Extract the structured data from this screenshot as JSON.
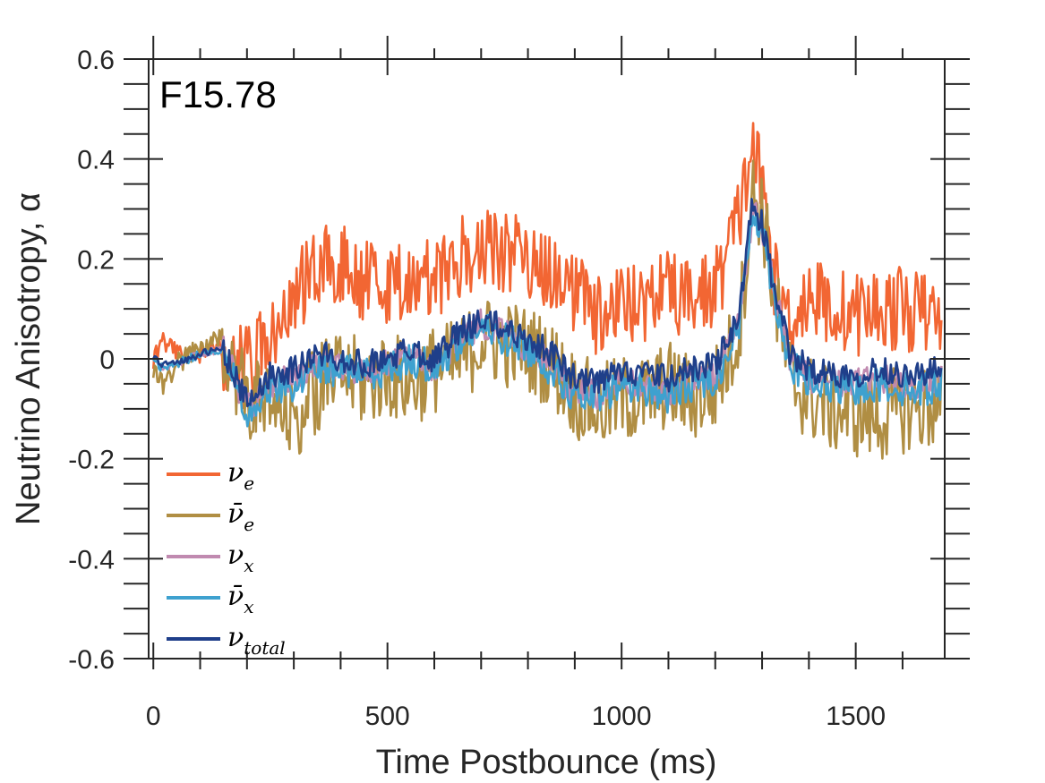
{
  "chart_data": {
    "type": "line",
    "title": "F15.78",
    "xlabel": "Time Postbounce (ms)",
    "ylabel": "Neutrino Anisotropy, α",
    "xlim": [
      -10,
      1690
    ],
    "ylim": [
      -0.6,
      0.6
    ],
    "xticks": [
      0,
      500,
      1000,
      1500
    ],
    "xtick_labels": [
      "0",
      "500",
      "1000",
      "1500"
    ],
    "yticks": [
      -0.6,
      -0.4,
      -0.2,
      0,
      0.2,
      0.4,
      0.6
    ],
    "ytick_labels": [
      "-0.6",
      "-0.4",
      "-0.2",
      "0",
      "0.2",
      "0.4",
      "0.6"
    ],
    "grid": false,
    "legend_position": "bottom-left",
    "series": [
      {
        "name": "nu_e",
        "label_base": "ν",
        "label_sub": "e",
        "color": "#f26633",
        "noise": 0.085,
        "points": [
          [
            0,
            0
          ],
          [
            20,
            0.04
          ],
          [
            50,
            0.01
          ],
          [
            100,
            0.01
          ],
          [
            150,
            0.02
          ],
          [
            200,
            -0.02
          ],
          [
            250,
            0.06
          ],
          [
            300,
            0.13
          ],
          [
            350,
            0.18
          ],
          [
            400,
            0.2
          ],
          [
            450,
            0.16
          ],
          [
            500,
            0.14
          ],
          [
            550,
            0.17
          ],
          [
            600,
            0.16
          ],
          [
            650,
            0.2
          ],
          [
            700,
            0.22
          ],
          [
            750,
            0.21
          ],
          [
            800,
            0.2
          ],
          [
            850,
            0.18
          ],
          [
            900,
            0.13
          ],
          [
            950,
            0.08
          ],
          [
            1000,
            0.1
          ],
          [
            1050,
            0.12
          ],
          [
            1100,
            0.13
          ],
          [
            1150,
            0.12
          ],
          [
            1200,
            0.14
          ],
          [
            1250,
            0.28
          ],
          [
            1280,
            0.43
          ],
          [
            1300,
            0.34
          ],
          [
            1330,
            0.14
          ],
          [
            1360,
            0.08
          ],
          [
            1400,
            0.13
          ],
          [
            1450,
            0.1
          ],
          [
            1500,
            0.09
          ],
          [
            1550,
            0.1
          ],
          [
            1600,
            0.1
          ],
          [
            1650,
            0.09
          ],
          [
            1685,
            0.08
          ]
        ]
      },
      {
        "name": "nu_e_bar",
        "label_base": "ν̄",
        "label_sub": "e",
        "color": "#b08e43",
        "noise": 0.09,
        "points": [
          [
            0,
            -0.02
          ],
          [
            20,
            -0.05
          ],
          [
            50,
            -0.01
          ],
          [
            100,
            0.02
          ],
          [
            150,
            0.04
          ],
          [
            200,
            -0.08
          ],
          [
            250,
            -0.1
          ],
          [
            300,
            -0.12
          ],
          [
            350,
            -0.06
          ],
          [
            400,
            -0.03
          ],
          [
            450,
            -0.05
          ],
          [
            500,
            -0.03
          ],
          [
            550,
            -0.05
          ],
          [
            600,
            -0.02
          ],
          [
            650,
            -0.01
          ],
          [
            700,
            0.04
          ],
          [
            750,
            0.03
          ],
          [
            800,
            0.02
          ],
          [
            850,
            -0.01
          ],
          [
            900,
            -0.07
          ],
          [
            950,
            -0.1
          ],
          [
            1000,
            -0.08
          ],
          [
            1050,
            -0.08
          ],
          [
            1100,
            -0.05
          ],
          [
            1150,
            -0.08
          ],
          [
            1200,
            -0.06
          ],
          [
            1250,
            0.05
          ],
          [
            1280,
            0.33
          ],
          [
            1300,
            0.3
          ],
          [
            1330,
            0.1
          ],
          [
            1360,
            -0.04
          ],
          [
            1400,
            -0.08
          ],
          [
            1450,
            -0.1
          ],
          [
            1500,
            -0.11
          ],
          [
            1550,
            -0.12
          ],
          [
            1600,
            -0.1
          ],
          [
            1650,
            -0.1
          ],
          [
            1685,
            -0.08
          ]
        ]
      },
      {
        "name": "nu_x",
        "label_base": "ν",
        "label_sub": "x",
        "color": "#c08ab0",
        "noise": 0.03,
        "points": [
          [
            0,
            0
          ],
          [
            20,
            -0.02
          ],
          [
            50,
            -0.01
          ],
          [
            100,
            0.01
          ],
          [
            150,
            0.02
          ],
          [
            200,
            -0.1
          ],
          [
            250,
            -0.05
          ],
          [
            300,
            -0.04
          ],
          [
            350,
            -0.01
          ],
          [
            400,
            -0.02
          ],
          [
            450,
            -0.03
          ],
          [
            500,
            -0.01
          ],
          [
            550,
            0.01
          ],
          [
            600,
            -0.02
          ],
          [
            650,
            0.04
          ],
          [
            700,
            0.07
          ],
          [
            750,
            0.05
          ],
          [
            800,
            0.02
          ],
          [
            850,
            -0.01
          ],
          [
            900,
            -0.07
          ],
          [
            950,
            -0.07
          ],
          [
            1000,
            -0.04
          ],
          [
            1050,
            -0.05
          ],
          [
            1100,
            -0.07
          ],
          [
            1150,
            -0.04
          ],
          [
            1200,
            -0.03
          ],
          [
            1250,
            0.07
          ],
          [
            1280,
            0.3
          ],
          [
            1300,
            0.26
          ],
          [
            1330,
            0.12
          ],
          [
            1360,
            0.0
          ],
          [
            1400,
            -0.04
          ],
          [
            1450,
            -0.05
          ],
          [
            1500,
            -0.05
          ],
          [
            1550,
            -0.04
          ],
          [
            1600,
            -0.05
          ],
          [
            1650,
            -0.05
          ],
          [
            1685,
            -0.04
          ]
        ]
      },
      {
        "name": "nu_x_bar",
        "label_base": "ν̄",
        "label_sub": "x",
        "color": "#3ea1cf",
        "noise": 0.035,
        "points": [
          [
            0,
            0
          ],
          [
            20,
            -0.02
          ],
          [
            50,
            -0.01
          ],
          [
            100,
            0.01
          ],
          [
            150,
            0.02
          ],
          [
            200,
            -0.11
          ],
          [
            250,
            -0.06
          ],
          [
            300,
            -0.05
          ],
          [
            350,
            -0.02
          ],
          [
            400,
            -0.02
          ],
          [
            450,
            -0.03
          ],
          [
            500,
            -0.02
          ],
          [
            550,
            0.0
          ],
          [
            600,
            -0.02
          ],
          [
            650,
            0.03
          ],
          [
            700,
            0.06
          ],
          [
            750,
            0.04
          ],
          [
            800,
            0.02
          ],
          [
            850,
            -0.02
          ],
          [
            900,
            -0.08
          ],
          [
            950,
            -0.08
          ],
          [
            1000,
            -0.05
          ],
          [
            1050,
            -0.06
          ],
          [
            1100,
            -0.08
          ],
          [
            1150,
            -0.05
          ],
          [
            1200,
            -0.04
          ],
          [
            1250,
            0.06
          ],
          [
            1280,
            0.3
          ],
          [
            1300,
            0.26
          ],
          [
            1330,
            0.11
          ],
          [
            1360,
            -0.01
          ],
          [
            1400,
            -0.05
          ],
          [
            1450,
            -0.06
          ],
          [
            1500,
            -0.06
          ],
          [
            1550,
            -0.05
          ],
          [
            1600,
            -0.06
          ],
          [
            1650,
            -0.06
          ],
          [
            1685,
            -0.05
          ]
        ]
      },
      {
        "name": "nu_total",
        "label_base": "ν",
        "label_sub": "total",
        "color": "#1f3f8a",
        "noise": 0.028,
        "points": [
          [
            0,
            0
          ],
          [
            20,
            -0.01
          ],
          [
            50,
            -0.01
          ],
          [
            100,
            0.01
          ],
          [
            150,
            0.02
          ],
          [
            200,
            -0.09
          ],
          [
            250,
            -0.03
          ],
          [
            300,
            -0.02
          ],
          [
            350,
            0.01
          ],
          [
            400,
            0.0
          ],
          [
            450,
            -0.01
          ],
          [
            500,
            0.0
          ],
          [
            550,
            0.02
          ],
          [
            600,
            0.0
          ],
          [
            650,
            0.05
          ],
          [
            700,
            0.08
          ],
          [
            750,
            0.06
          ],
          [
            800,
            0.04
          ],
          [
            850,
            0.01
          ],
          [
            900,
            -0.04
          ],
          [
            950,
            -0.05
          ],
          [
            1000,
            -0.02
          ],
          [
            1050,
            -0.03
          ],
          [
            1100,
            -0.04
          ],
          [
            1150,
            -0.02
          ],
          [
            1200,
            -0.01
          ],
          [
            1250,
            0.08
          ],
          [
            1280,
            0.31
          ],
          [
            1300,
            0.27
          ],
          [
            1330,
            0.12
          ],
          [
            1360,
            0.01
          ],
          [
            1400,
            -0.02
          ],
          [
            1450,
            -0.03
          ],
          [
            1500,
            -0.03
          ],
          [
            1550,
            -0.02
          ],
          [
            1600,
            -0.03
          ],
          [
            1650,
            -0.03
          ],
          [
            1685,
            -0.02
          ]
        ]
      }
    ]
  }
}
